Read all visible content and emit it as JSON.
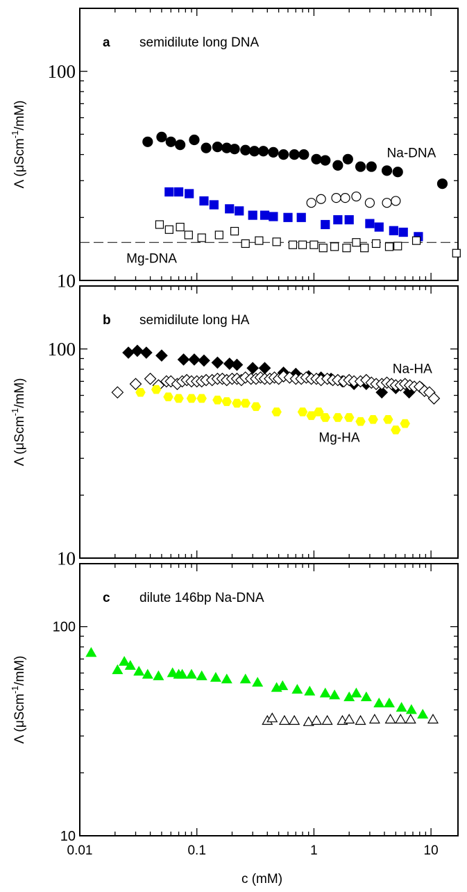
{
  "figure": {
    "xlabel": "c (mM)",
    "x_tick_labels": [
      "0.01",
      "0.1",
      "1",
      "10"
    ]
  },
  "chart_data": [
    {
      "type": "scatter",
      "panel_letter": "a",
      "title": "semidilute long DNA",
      "xlabel": "c (mM)",
      "ylabel": "Λ (μScm-1/mM)",
      "xscale": "log",
      "yscale": "log",
      "xlim": [
        0.01,
        17
      ],
      "ylim": [
        10,
        200
      ],
      "y_tick_labels": [
        "10",
        "100"
      ],
      "grid": false,
      "annotations": [
        {
          "text": "Na-DNA",
          "at": [
            4.2,
            41
          ]
        },
        {
          "text": "Mg-DNA",
          "at": [
            0.025,
            12.8
          ]
        }
      ],
      "reference_lines": [
        {
          "style": "dashed",
          "y": 15.2
        }
      ],
      "series": [
        {
          "marker": "filled-circle",
          "color": "#000000",
          "x": [
            0.038,
            0.05,
            0.06,
            0.072,
            0.095,
            0.12,
            0.15,
            0.18,
            0.21,
            0.26,
            0.31,
            0.37,
            0.45,
            0.55,
            0.68,
            0.82,
            1.05,
            1.25,
            1.6,
            1.95,
            2.5,
            3.1,
            4.2,
            5.2,
            12.5
          ],
          "y": [
            46,
            48.5,
            46,
            44.5,
            47,
            43,
            43.5,
            43,
            42.5,
            42,
            41.5,
            41.5,
            41,
            40,
            40,
            40,
            38,
            37.5,
            35.5,
            38,
            35,
            35,
            33.5,
            33,
            29
          ]
        },
        {
          "marker": "filled-square",
          "color": "#0000dd",
          "x": [
            0.058,
            0.07,
            0.086,
            0.115,
            0.14,
            0.19,
            0.23,
            0.3,
            0.38,
            0.45,
            0.6,
            0.78,
            1.25,
            1.6,
            2.0,
            3.0,
            3.6,
            4.8,
            5.8,
            7.8
          ],
          "y": [
            26.5,
            26.5,
            26,
            24,
            23,
            22,
            21.5,
            20.5,
            20.5,
            20.2,
            20,
            20,
            18.5,
            19.5,
            19.5,
            18.7,
            18,
            17.3,
            17,
            16.2
          ]
        },
        {
          "marker": "open-circle",
          "color": "#000000",
          "x": [
            0.95,
            1.15,
            1.55,
            1.85,
            2.3,
            3.0,
            4.2,
            5.0
          ],
          "y": [
            23.5,
            24.5,
            24.8,
            24.8,
            25.2,
            23.5,
            23.5,
            24
          ]
        },
        {
          "marker": "open-square",
          "color": "#000000",
          "x": [
            0.048,
            0.058,
            0.072,
            0.085,
            0.11,
            0.155,
            0.21,
            0.26,
            0.34,
            0.48,
            0.66,
            0.8,
            1.0,
            1.2,
            1.5,
            1.9,
            2.3,
            2.7,
            3.4,
            4.4,
            5.2,
            7.5,
            16.5
          ],
          "y": [
            18.5,
            17.5,
            18,
            16.5,
            16,
            16.5,
            17.2,
            15,
            15.5,
            15.3,
            14.8,
            14.8,
            14.8,
            14.3,
            14.5,
            14.3,
            15.2,
            14.3,
            15,
            14.5,
            14.6,
            15.5,
            13.5
          ]
        }
      ]
    },
    {
      "type": "scatter",
      "panel_letter": "b",
      "title": "semidilute long HA",
      "xlabel": "c (mM)",
      "ylabel": "Λ (μScm-1/mM)",
      "xscale": "log",
      "yscale": "log",
      "xlim": [
        0.01,
        17
      ],
      "ylim": [
        10,
        200
      ],
      "y_tick_labels": [
        "10",
        "100"
      ],
      "grid": false,
      "annotations": [
        {
          "text": "Na-HA",
          "at": [
            4.7,
            81
          ]
        },
        {
          "text": "Mg-HA",
          "at": [
            1.1,
            38
          ]
        }
      ],
      "series": [
        {
          "marker": "filled-diamond",
          "color": "#000000",
          "x": [
            0.026,
            0.031,
            0.037,
            0.05,
            0.077,
            0.095,
            0.115,
            0.15,
            0.19,
            0.22,
            0.3,
            0.38,
            0.55,
            0.7,
            0.9,
            1.15,
            1.4,
            1.75,
            2.2,
            2.8,
            3.8,
            5.0,
            6.5,
            8.3
          ],
          "y": [
            96,
            98,
            96,
            93,
            89,
            89,
            88,
            86,
            85,
            84,
            81,
            81,
            77,
            76,
            74,
            73,
            72,
            70,
            68,
            68,
            62,
            65,
            62,
            65
          ]
        },
        {
          "marker": "open-diamond",
          "color": "#000000",
          "x": [
            0.021,
            0.03,
            0.04,
            0.047,
            0.055,
            0.06,
            0.068,
            0.075,
            0.082,
            0.09,
            0.1,
            0.11,
            0.12,
            0.135,
            0.15,
            0.165,
            0.18,
            0.2,
            0.22,
            0.24,
            0.26,
            0.29,
            0.32,
            0.35,
            0.38,
            0.42,
            0.46,
            0.5,
            0.55,
            0.62,
            0.7,
            0.78,
            0.86,
            0.95,
            1.05,
            1.15,
            1.3,
            1.45,
            1.6,
            1.8,
            2.0,
            2.2,
            2.5,
            2.8,
            3.1,
            3.4,
            3.8,
            4.2,
            4.6,
            5.0,
            5.5,
            6.0,
            6.6,
            7.2,
            8.0,
            8.8,
            9.7,
            10.6
          ],
          "y": [
            62,
            68,
            72,
            67,
            70,
            70,
            68,
            70,
            71,
            70,
            70,
            70,
            71,
            71,
            72,
            72,
            71,
            72,
            72,
            71,
            73,
            72,
            72,
            73,
            72,
            72,
            73,
            72,
            74,
            73,
            72,
            72,
            73,
            72,
            72,
            71,
            72,
            71,
            71,
            70,
            71,
            70,
            70,
            71,
            69,
            68,
            68,
            69,
            68,
            67,
            67,
            68,
            67,
            66,
            66,
            63,
            62,
            58
          ]
        },
        {
          "marker": "filled-hexagon",
          "color": "#ffff00",
          "x": [
            0.033,
            0.045,
            0.057,
            0.07,
            0.09,
            0.11,
            0.15,
            0.18,
            0.22,
            0.26,
            0.32,
            0.48,
            0.8,
            0.95,
            1.1,
            1.25,
            1.6,
            2.0,
            2.5,
            3.2,
            4.3,
            5.0,
            6.0
          ],
          "y": [
            62,
            64,
            59,
            58,
            58,
            58,
            57,
            56,
            55,
            55,
            53,
            50,
            50,
            48,
            50,
            47,
            47,
            47,
            45,
            46,
            46,
            41,
            44
          ]
        }
      ]
    },
    {
      "type": "scatter",
      "panel_letter": "c",
      "title": "dilute 146bp Na-DNA",
      "xlabel": "c (mM)",
      "ylabel": "Λ (μScm-1/mM)",
      "xscale": "log",
      "yscale": "log",
      "xlim": [
        0.01,
        17
      ],
      "ylim": [
        10,
        200
      ],
      "y_tick_labels": [
        "10",
        "100"
      ],
      "grid": false,
      "annotations": [],
      "series": [
        {
          "marker": "filled-triangle",
          "color": "#00ee00",
          "x": [
            0.0125,
            0.021,
            0.024,
            0.027,
            0.032,
            0.038,
            0.047,
            0.062,
            0.07,
            0.075,
            0.09,
            0.11,
            0.145,
            0.18,
            0.26,
            0.33,
            0.48,
            0.54,
            0.72,
            0.92,
            1.25,
            1.5,
            2.0,
            2.3,
            2.8,
            3.6,
            4.4,
            5.6,
            6.8,
            8.5
          ],
          "y": [
            75,
            62,
            68,
            65,
            61,
            59,
            58,
            60,
            59,
            59,
            59,
            58,
            57,
            56,
            56,
            54,
            51,
            52,
            50,
            49,
            48,
            47,
            46,
            48,
            46,
            43,
            43,
            41,
            40,
            38
          ]
        },
        {
          "marker": "open-triangle",
          "color": "#000000",
          "x": [
            0.4,
            0.44,
            0.56,
            0.68,
            0.9,
            1.05,
            1.3,
            1.75,
            2.0,
            2.5,
            3.3,
            4.5,
            5.5,
            6.7,
            10.4
          ],
          "y": [
            35.5,
            36.5,
            35.5,
            35.5,
            35,
            35.5,
            35.5,
            35.5,
            36,
            35.5,
            36,
            36,
            36,
            36,
            36
          ]
        }
      ]
    }
  ]
}
